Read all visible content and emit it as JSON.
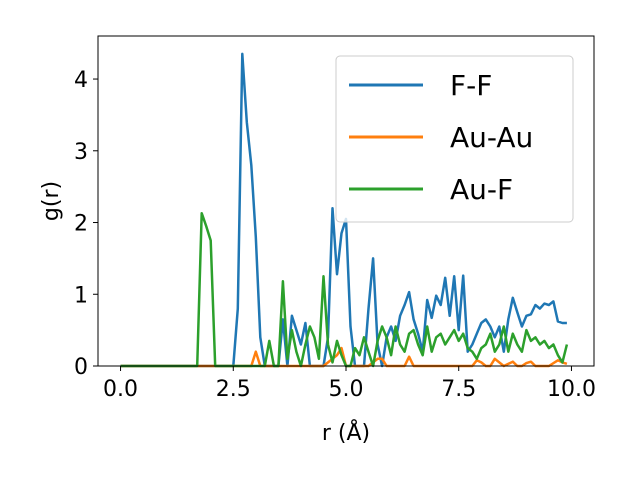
{
  "chart_data": {
    "type": "line",
    "title": "",
    "xlabel": "r (Å)",
    "ylabel": "g(r)",
    "xlim": [
      -0.5,
      10.5
    ],
    "ylim": [
      0,
      4.6
    ],
    "xticks": [
      "0.0",
      "2.5",
      "5.0",
      "7.5",
      "10.0"
    ],
    "xtick_values": [
      0,
      2.5,
      5,
      7.5,
      10
    ],
    "yticks": [
      "0",
      "1",
      "2",
      "3",
      "4"
    ],
    "ytick_values": [
      0,
      1,
      2,
      3,
      4
    ],
    "grid": false,
    "legend_position": "top-right",
    "series": [
      {
        "name": "F-F",
        "color": "#1f77b4",
        "x": [
          0.0,
          0.5,
          1.0,
          1.5,
          2.0,
          2.4,
          2.5,
          2.6,
          2.7,
          2.8,
          2.9,
          3.0,
          3.1,
          3.2,
          3.3,
          3.4,
          3.5,
          3.6,
          3.7,
          3.8,
          3.9,
          4.0,
          4.1,
          4.2,
          4.3,
          4.4,
          4.5,
          4.6,
          4.7,
          4.8,
          4.9,
          5.0,
          5.1,
          5.2,
          5.3,
          5.4,
          5.5,
          5.6,
          5.7,
          5.8,
          5.9,
          6.0,
          6.1,
          6.2,
          6.3,
          6.4,
          6.5,
          6.6,
          6.7,
          6.8,
          6.9,
          7.0,
          7.1,
          7.2,
          7.3,
          7.4,
          7.5,
          7.6,
          7.7,
          7.8,
          7.9,
          8.0,
          8.1,
          8.2,
          8.3,
          8.4,
          8.5,
          8.6,
          8.7,
          8.8,
          8.9,
          9.0,
          9.1,
          9.2,
          9.3,
          9.4,
          9.5,
          9.6,
          9.7,
          9.8,
          9.9
        ],
        "values": [
          0,
          0,
          0,
          0,
          0,
          0,
          0,
          0.8,
          4.35,
          3.4,
          2.8,
          1.8,
          0.4,
          0,
          0,
          0,
          0,
          0.65,
          0,
          0.7,
          0.5,
          0.3,
          0.6,
          0,
          0,
          0,
          0,
          0.4,
          2.2,
          1.28,
          1.85,
          2.05,
          0.55,
          0,
          0,
          0,
          0.8,
          1.5,
          0.3,
          0,
          0.4,
          0.55,
          0.35,
          0.7,
          0.85,
          1.03,
          0.65,
          0.45,
          0.2,
          0.92,
          0.67,
          0.98,
          0.85,
          1.23,
          0.7,
          1.25,
          0.5,
          1.26,
          0.2,
          0.3,
          0.45,
          0.6,
          0.65,
          0.55,
          0.4,
          0.55,
          0.2,
          0.65,
          0.95,
          0.75,
          0.55,
          0.7,
          0.72,
          0.85,
          0.8,
          0.87,
          0.85,
          0.9,
          0.62,
          0.6,
          0.6
        ]
      },
      {
        "name": "Au-Au",
        "color": "#ff7f0e",
        "x": [
          0.0,
          0.5,
          1.0,
          1.5,
          2.0,
          2.5,
          2.9,
          3.0,
          3.1,
          3.2,
          3.3,
          3.5,
          4.0,
          4.5,
          4.8,
          4.9,
          5.0,
          5.1,
          5.3,
          5.5,
          5.7,
          5.8,
          5.9,
          6.0,
          6.3,
          6.4,
          6.5,
          7.0,
          7.5,
          7.8,
          7.9,
          8.0,
          8.1,
          8.2,
          8.3,
          8.5,
          8.7,
          8.8,
          8.9,
          9.0,
          9.1,
          9.2,
          9.3,
          9.5,
          9.7,
          9.8,
          9.9
        ],
        "values": [
          0,
          0,
          0,
          0,
          0,
          0,
          0,
          0.2,
          0,
          0,
          0,
          0,
          0,
          0,
          0.15,
          0.25,
          0,
          0,
          0,
          0,
          0.1,
          0.1,
          0,
          0,
          0,
          0.13,
          0,
          0,
          0,
          0,
          0.08,
          0.05,
          0,
          0,
          0.1,
          0,
          0.06,
          0,
          0,
          0.04,
          0.06,
          0,
          0,
          0,
          0.08,
          0.05,
          0.03
        ]
      },
      {
        "name": "Au-F",
        "color": "#2ca02c",
        "x": [
          0.0,
          0.5,
          1.0,
          1.5,
          1.7,
          1.8,
          1.9,
          2.0,
          2.1,
          2.5,
          3.0,
          3.2,
          3.3,
          3.4,
          3.5,
          3.6,
          3.7,
          3.8,
          3.9,
          4.0,
          4.1,
          4.2,
          4.3,
          4.4,
          4.5,
          4.6,
          4.7,
          4.8,
          4.9,
          5.0,
          5.1,
          5.2,
          5.3,
          5.4,
          5.5,
          5.6,
          5.7,
          5.8,
          5.9,
          6.0,
          6.1,
          6.2,
          6.3,
          6.4,
          6.5,
          6.6,
          6.7,
          6.8,
          6.9,
          7.0,
          7.1,
          7.2,
          7.3,
          7.4,
          7.5,
          7.6,
          7.7,
          7.8,
          7.9,
          8.0,
          8.1,
          8.2,
          8.3,
          8.4,
          8.5,
          8.6,
          8.7,
          8.8,
          8.9,
          9.0,
          9.1,
          9.2,
          9.3,
          9.4,
          9.5,
          9.6,
          9.7,
          9.8,
          9.9
        ],
        "values": [
          0,
          0,
          0,
          0,
          0,
          2.13,
          1.95,
          1.75,
          0,
          0,
          0,
          0,
          0.35,
          0,
          0,
          1.18,
          0.1,
          0.5,
          0.2,
          0,
          0.3,
          0.55,
          0.4,
          0.1,
          1.25,
          0.3,
          0.05,
          0.35,
          0.15,
          0,
          0,
          0.25,
          0.15,
          0.4,
          0.2,
          0,
          0.35,
          0.55,
          0.4,
          0.15,
          0.55,
          0.3,
          0.2,
          0.45,
          0.5,
          0.3,
          0.15,
          0.55,
          0.2,
          0.4,
          0.45,
          0.3,
          0.4,
          0.5,
          0.35,
          0.45,
          0.25,
          0.2,
          0.1,
          0.25,
          0.3,
          0.45,
          0.2,
          0.3,
          0.55,
          0.2,
          0.45,
          0.3,
          0.2,
          0.5,
          0.35,
          0.4,
          0.3,
          0.35,
          0.25,
          0.3,
          0.15,
          0.05,
          0.3
        ]
      }
    ]
  }
}
